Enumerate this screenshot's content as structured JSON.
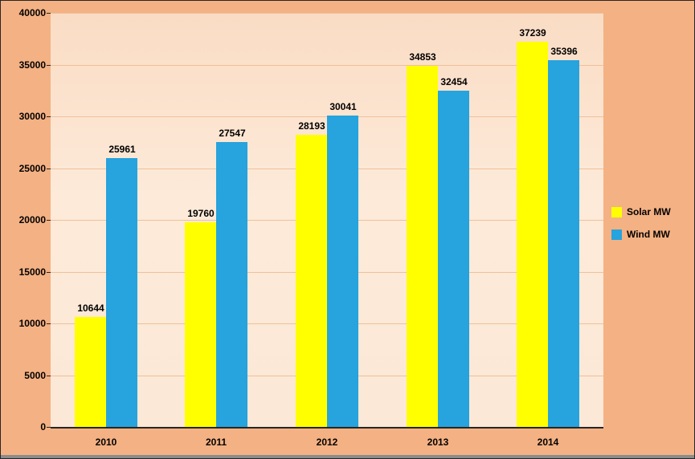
{
  "chart_data": {
    "type": "bar",
    "categories": [
      "2010",
      "2011",
      "2012",
      "2013",
      "2014"
    ],
    "series": [
      {
        "name": "Solar MW",
        "color": "#ffff00",
        "values": [
          10644,
          19760,
          28193,
          34853,
          37239
        ]
      },
      {
        "name": "Wind MW",
        "color": "#27a3dd",
        "values": [
          25961,
          27547,
          30041,
          32454,
          35396
        ]
      }
    ],
    "title": "",
    "xlabel": "",
    "ylabel": "",
    "ylim": [
      0,
      40000
    ],
    "yticks": [
      0,
      5000,
      10000,
      15000,
      20000,
      25000,
      30000,
      35000,
      40000
    ],
    "grid": true,
    "data_labels": true,
    "legend_position": "right"
  },
  "colors": {
    "background": "#f4b183",
    "plot_background": "#fce8d6",
    "gridline": "#f0c09a",
    "axis_text": "#000000",
    "baseline": "#262626",
    "solar_bar": "#ffff00",
    "wind_bar": "#27a3dd"
  }
}
